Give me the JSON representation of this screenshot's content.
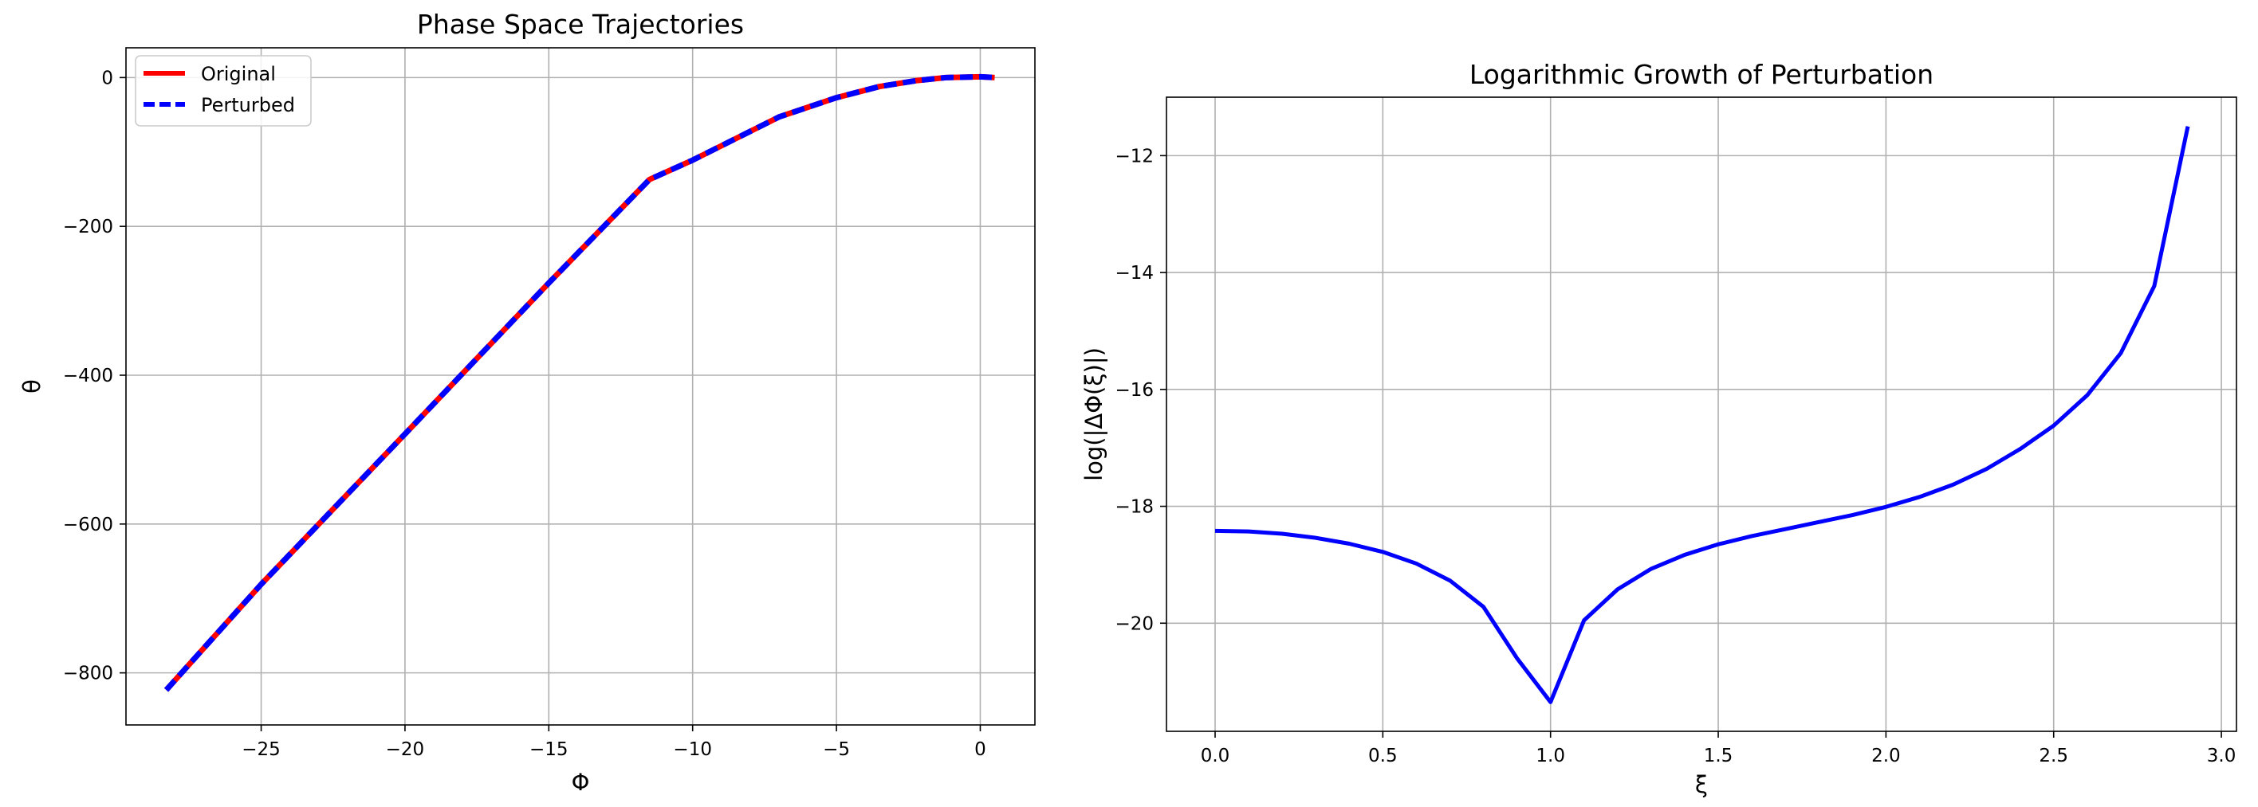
{
  "chart_data": [
    {
      "type": "line",
      "title": "Phase Space Trajectories",
      "xlabel": "Φ",
      "ylabel": "θ",
      "xlim": [
        -29.7,
        1.9
      ],
      "ylim": [
        -870,
        40
      ],
      "xticks": [
        -25,
        -20,
        -15,
        -10,
        -5,
        0
      ],
      "xtick_labels": [
        "−25",
        "−20",
        "−15",
        "−10",
        "−5",
        "0"
      ],
      "yticks": [
        0,
        -200,
        -400,
        -600,
        -800
      ],
      "ytick_labels": [
        "0",
        "−200",
        "−400",
        "−600",
        "−800"
      ],
      "grid": true,
      "legend_position": "top-left",
      "series": [
        {
          "name": "Original",
          "color": "#ff0000",
          "style": "solid",
          "x": [
            -28.3,
            -25,
            -20,
            -15,
            -11.5,
            -10,
            -7,
            -5,
            -3.5,
            -2.2,
            -1.2,
            0,
            0.5
          ],
          "y": [
            -823,
            -681,
            -479,
            -276,
            -137,
            -111,
            -53,
            -27,
            -12,
            -4,
            0,
            1,
            0
          ]
        },
        {
          "name": "Perturbed",
          "color": "#0000ff",
          "style": "dashed",
          "x": [
            -28.3,
            -25,
            -20,
            -15,
            -11.5,
            -10,
            -7,
            -5,
            -3.5,
            -2.2,
            -1.2,
            0,
            0.5
          ],
          "y": [
            -823,
            -681,
            -479,
            -276,
            -137,
            -111,
            -53,
            -27,
            -12,
            -4,
            0,
            1,
            0
          ]
        }
      ]
    },
    {
      "type": "line",
      "title": "Logarithmic Growth of Perturbation",
      "xlabel": "ξ",
      "ylabel": "log(|ΔΦ(ξ)|)",
      "xlim": [
        -0.145,
        3.045
      ],
      "ylim": [
        -21.85,
        -11.0
      ],
      "xticks": [
        0.0,
        0.5,
        1.0,
        1.5,
        2.0,
        2.5,
        3.0
      ],
      "xtick_labels": [
        "0.0",
        "0.5",
        "1.0",
        "1.5",
        "2.0",
        "2.5",
        "3.0"
      ],
      "yticks": [
        -12,
        -14,
        -16,
        -18,
        -20
      ],
      "ytick_labels": [
        "−12",
        "−14",
        "−16",
        "−18",
        "−20"
      ],
      "grid": true,
      "series": [
        {
          "color": "#0000ff",
          "style": "solid",
          "x": [
            0.0,
            0.1,
            0.2,
            0.3,
            0.4,
            0.5,
            0.6,
            0.7,
            0.8,
            0.9,
            1.0,
            1.1,
            1.2,
            1.3,
            1.4,
            1.5,
            1.6,
            1.7,
            1.8,
            1.9,
            2.0,
            2.1,
            2.2,
            2.3,
            2.4,
            2.5,
            2.6,
            2.7,
            2.8,
            2.9
          ],
          "y": [
            -18.42,
            -18.43,
            -18.47,
            -18.54,
            -18.64,
            -18.78,
            -18.98,
            -19.27,
            -19.72,
            -20.6,
            -21.35,
            -19.95,
            -19.42,
            -19.07,
            -18.83,
            -18.65,
            -18.51,
            -18.39,
            -18.27,
            -18.15,
            -18.01,
            -17.84,
            -17.63,
            -17.36,
            -17.02,
            -16.62,
            -16.1,
            -15.38,
            -14.23,
            -11.5
          ]
        }
      ]
    }
  ]
}
